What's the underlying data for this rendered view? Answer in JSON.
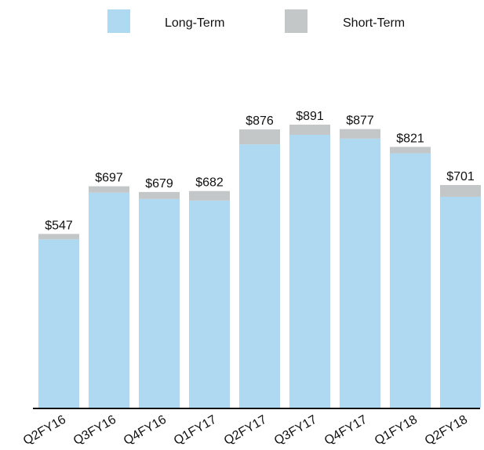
{
  "chart_data": {
    "type": "stacked-bar",
    "categories": [
      "Q2FY16",
      "Q3FY16",
      "Q4FY16",
      "Q1FY17",
      "Q2FY17",
      "Q3FY17",
      "Q4FY17",
      "Q1FY18",
      "Q2FY18"
    ],
    "series": [
      {
        "name": "Long-Term",
        "color": "#afd8f1",
        "values": [
          530,
          677,
          657,
          652,
          829,
          859,
          847,
          801,
          664
        ]
      },
      {
        "name": "Short-Term",
        "color": "#c3c7c8",
        "values": [
          17,
          20,
          22,
          30,
          47,
          32,
          30,
          20,
          37
        ]
      }
    ],
    "totals": [
      547,
      697,
      679,
      682,
      876,
      891,
      877,
      821,
      701
    ],
    "total_labels": [
      "$547",
      "$697",
      "$679",
      "$682",
      "$876",
      "$891",
      "$877",
      "$821",
      "$701"
    ]
  }
}
